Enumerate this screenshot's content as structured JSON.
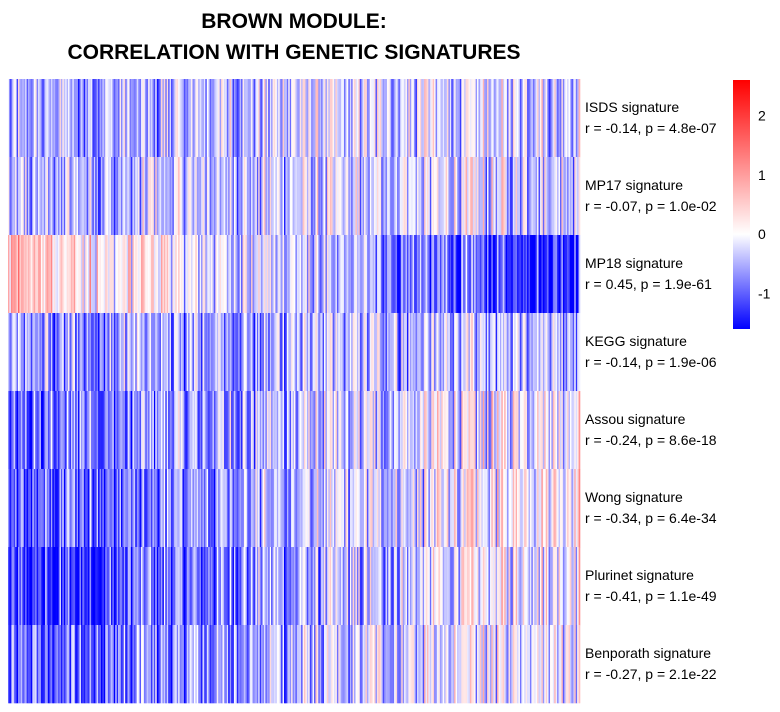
{
  "chart_data": {
    "type": "heatmap",
    "title_lines": [
      "BROWN MODULE:",
      "CORRELATION WITH GENETIC SIGNATURES"
    ],
    "rows": [
      {
        "name": "ISDS signature",
        "stats": "r = -0.14, p = 4.8e-07",
        "r": -0.14,
        "p": "4.8e-07",
        "base": -0.6,
        "trend": 0.5
      },
      {
        "name": "MP17 signature",
        "stats": "r = -0.07, p = 1.0e-02",
        "r": -0.07,
        "p": "1.0e-02",
        "base": -0.5,
        "trend": 0.35
      },
      {
        "name": "MP18 signature",
        "stats": "r = 0.45, p = 1.9e-61",
        "r": 0.45,
        "p": "1.9e-61",
        "base": 0.6,
        "trend": -2.0
      },
      {
        "name": "KEGG signature",
        "stats": "r = -0.14, p = 1.9e-06",
        "r": -0.14,
        "p": "1.9e-06",
        "base": -0.7,
        "trend": 0.4
      },
      {
        "name": "Assou signature",
        "stats": "r = -0.24, p = 8.6e-18",
        "r": -0.24,
        "p": "8.6e-18",
        "base": -1.0,
        "trend": 1.1
      },
      {
        "name": "Wong signature",
        "stats": "r = -0.34, p = 6.4e-34",
        "r": -0.34,
        "p": "6.4e-34",
        "base": -1.2,
        "trend": 1.4
      },
      {
        "name": "Plurinet signature",
        "stats": "r = -0.41, p = 1.1e-49",
        "r": -0.41,
        "p": "1.1e-49",
        "base": -1.4,
        "trend": 1.6
      },
      {
        "name": "Benporath signature",
        "stats": "r = -0.27, p = 2.1e-22",
        "r": -0.27,
        "p": "2.1e-22",
        "base": -1.1,
        "trend": 1.2
      }
    ],
    "n_columns": 400,
    "color_scale": {
      "min": -1.6,
      "max": 2.6,
      "colors": {
        "low": "#0000ff",
        "mid": "#ffffff",
        "high": "#ff0000"
      },
      "ticks": [
        2,
        1,
        0,
        -1
      ],
      "tick_labels": [
        "2",
        "1",
        "0",
        "-1"
      ]
    },
    "grid": false,
    "legend_position": "top-right"
  }
}
